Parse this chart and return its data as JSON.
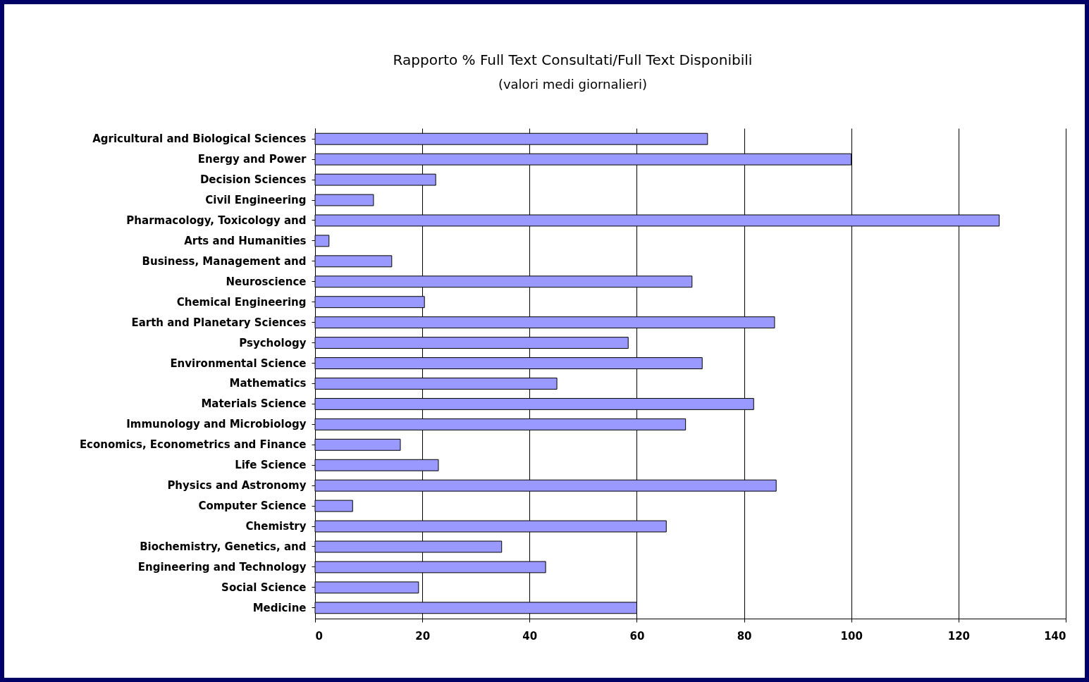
{
  "chart_data": {
    "type": "bar",
    "orientation": "horizontal",
    "title": "Rapporto % Full Text Consultati/Full Text Disponibili",
    "subtitle": "(valori medi giornalieri)",
    "categories": [
      "Agricultural and Biological Sciences",
      "Energy and Power",
      "Decision Sciences",
      "Civil Engineering",
      "Pharmacology, Toxicology and",
      "Arts and Humanities",
      "Business, Management and",
      "Neuroscience",
      "Chemical Engineering",
      "Earth and Planetary Sciences",
      "Psychology",
      "Environmental Science",
      "Mathematics",
      "Materials Science",
      "Immunology and Microbiology",
      "Economics, Econometrics and Finance",
      "Life Science",
      "Physics and Astronomy",
      "Computer Science",
      "Chemistry",
      "Biochemistry, Genetics, and",
      "Engineering and Technology",
      "Social Science",
      "Medicine"
    ],
    "values": [
      73.2,
      100,
      22.5,
      10.9,
      127.6,
      2.6,
      14.3,
      70.3,
      20.4,
      85.7,
      58.4,
      72.2,
      45.1,
      81.8,
      69.1,
      15.9,
      23.0,
      86.0,
      7.0,
      65.5,
      34.8,
      43.0,
      19.3,
      60
    ],
    "color": "#9999ff",
    "xlim": [
      0,
      140
    ],
    "xticks": [
      0,
      20,
      40,
      60,
      80,
      100,
      120,
      140
    ],
    "grid": "x"
  }
}
